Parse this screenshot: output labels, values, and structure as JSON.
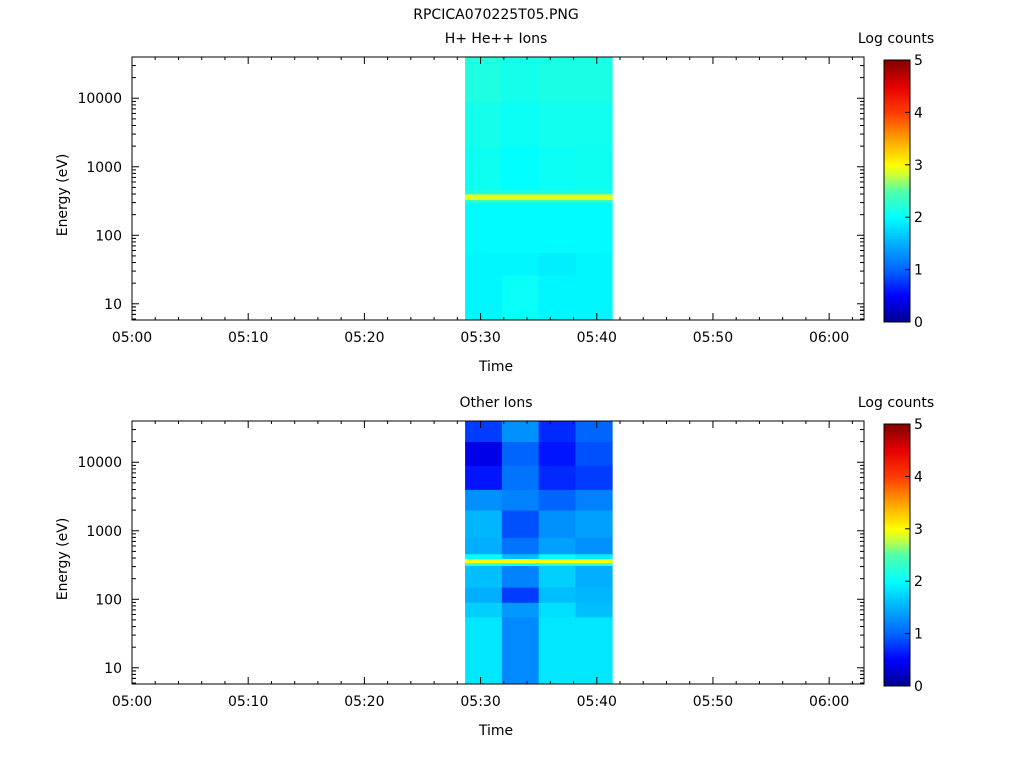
{
  "title": "RPCICA070225T05.PNG",
  "chart_data": [
    {
      "type": "heatmap",
      "title": "H+ He++ Ions",
      "xlabel": "Time",
      "ylabel": "Energy (eV)",
      "ylog": true,
      "ylim": [
        5.8,
        40000
      ],
      "xlim": [
        "05:00",
        "06:03"
      ],
      "xticks": [
        "05:00",
        "05:10",
        "05:20",
        "05:30",
        "05:40",
        "05:50",
        "06:00"
      ],
      "yticks": [
        "10",
        "100",
        "1000",
        "10000"
      ],
      "colorbar": {
        "label": "Log counts",
        "range": [
          0,
          5
        ],
        "ticks": [
          "0",
          "1",
          "2",
          "3",
          "4",
          "5"
        ]
      },
      "columns": [
        "05:28:40",
        "05:31:50",
        "05:35:00",
        "05:38:10",
        "05:41:20"
      ],
      "bands": [
        {
          "e_low": 5.8,
          "e_high": 26,
          "values": [
            1.95,
            2.05,
            1.95,
            1.95
          ]
        },
        {
          "e_low": 26,
          "e_high": 56,
          "values": [
            1.95,
            1.95,
            1.9,
            1.95
          ]
        },
        {
          "e_low": 56,
          "e_high": 300,
          "values": [
            1.98,
            1.98,
            1.98,
            1.98
          ]
        },
        {
          "e_low": 300,
          "e_high": 330,
          "values": [
            2.2,
            2.2,
            2.2,
            2.2
          ]
        },
        {
          "e_low": 330,
          "e_high": 400,
          "values": [
            2.9,
            2.9,
            2.9,
            2.9
          ]
        },
        {
          "e_low": 400,
          "e_high": 460,
          "values": [
            2.2,
            2.2,
            2.2,
            2.2
          ]
        },
        {
          "e_low": 460,
          "e_high": 2000,
          "values": [
            2.08,
            2.0,
            2.06,
            2.08
          ]
        },
        {
          "e_low": 2000,
          "e_high": 9000,
          "values": [
            2.12,
            2.06,
            2.1,
            2.1
          ]
        },
        {
          "e_low": 9000,
          "e_high": 40000,
          "values": [
            2.18,
            2.12,
            2.15,
            2.15
          ]
        }
      ]
    },
    {
      "type": "heatmap",
      "title": "Other Ions",
      "xlabel": "Time",
      "ylabel": "Energy (eV)",
      "ylog": true,
      "ylim": [
        5.8,
        40000
      ],
      "xlim": [
        "05:00",
        "06:03"
      ],
      "xticks": [
        "05:00",
        "05:10",
        "05:20",
        "05:30",
        "05:40",
        "05:50",
        "06:00"
      ],
      "yticks": [
        "10",
        "100",
        "1000",
        "10000"
      ],
      "colorbar": {
        "label": "Log counts",
        "range": [
          0,
          5
        ],
        "ticks": [
          "0",
          "1",
          "2",
          "3",
          "4",
          "5"
        ]
      },
      "columns": [
        "05:28:40",
        "05:31:50",
        "05:35:00",
        "05:38:10",
        "05:41:20"
      ],
      "bands": [
        {
          "e_low": 5.8,
          "e_high": 55,
          "values": [
            1.85,
            1.25,
            1.85,
            1.85
          ]
        },
        {
          "e_low": 55,
          "e_high": 90,
          "values": [
            1.7,
            1.35,
            1.8,
            1.6
          ]
        },
        {
          "e_low": 90,
          "e_high": 150,
          "values": [
            1.5,
            0.8,
            1.6,
            1.55
          ]
        },
        {
          "e_low": 150,
          "e_high": 310,
          "values": [
            1.6,
            1.2,
            1.7,
            1.5
          ]
        },
        {
          "e_low": 310,
          "e_high": 340,
          "values": [
            2.3,
            2.1,
            2.3,
            2.3
          ]
        },
        {
          "e_low": 340,
          "e_high": 390,
          "values": [
            3.0,
            3.0,
            3.0,
            3.0
          ]
        },
        {
          "e_low": 390,
          "e_high": 460,
          "values": [
            2.0,
            1.6,
            2.0,
            1.9
          ]
        },
        {
          "e_low": 460,
          "e_high": 800,
          "values": [
            1.5,
            1.1,
            1.4,
            1.3
          ]
        },
        {
          "e_low": 800,
          "e_high": 2000,
          "values": [
            1.55,
            0.9,
            1.3,
            1.4
          ]
        },
        {
          "e_low": 2000,
          "e_high": 4000,
          "values": [
            1.3,
            1.2,
            1.0,
            1.2
          ]
        },
        {
          "e_low": 4000,
          "e_high": 9000,
          "values": [
            0.6,
            1.1,
            0.7,
            0.8
          ]
        },
        {
          "e_low": 9000,
          "e_high": 20000,
          "values": [
            0.4,
            1.0,
            0.6,
            0.9
          ]
        },
        {
          "e_low": 20000,
          "e_high": 40000,
          "values": [
            0.8,
            1.3,
            0.7,
            1.0
          ]
        }
      ]
    }
  ]
}
